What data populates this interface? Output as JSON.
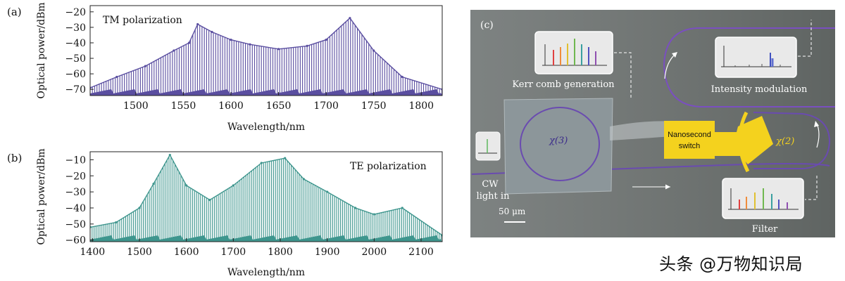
{
  "figure": {
    "panel_a": {
      "tag": "(a)"
    },
    "panel_b": {
      "tag": "(b)"
    },
    "panel_c": {
      "tag": "(c)",
      "labels": {
        "kerr": "Kerr comb generation",
        "intensity": "Intensity modulation",
        "filter": "Filter",
        "cw_line1": "CW",
        "cw_line2": "light in",
        "scale": "50 μm",
        "ns_line1": "Nanosecond",
        "ns_line2": "switch",
        "chi3": "χ(3)",
        "chi2": "χ(2)"
      }
    }
  },
  "watermark": "头条 @万物知识局",
  "colors": {
    "tm_trace": "#5a4ea0",
    "te_trace": "#3f968e",
    "chip_bg": "#5f6462",
    "waveguide": "#6a4bb0",
    "switch": "#f4d21e"
  },
  "chart_data": [
    {
      "type": "line",
      "title": "",
      "annotation": "TM polarization",
      "xlabel": "Wavelength/nm",
      "ylabel": "Optical power/dBm",
      "xlim": [
        1452,
        1822
      ],
      "ylim": [
        -74,
        -16
      ],
      "xticks": [
        1500,
        1550,
        1600,
        1650,
        1700,
        1750,
        1800
      ],
      "yticks": [
        -20,
        -30,
        -40,
        -50,
        -60,
        -70
      ],
      "x": [
        1452,
        1480,
        1510,
        1540,
        1556,
        1565,
        1580,
        1600,
        1620,
        1650,
        1680,
        1700,
        1725,
        1750,
        1780,
        1822
      ],
      "series": [
        {
          "values": [
            -69,
            -62,
            -55,
            -45,
            -40,
            -28,
            -33,
            -38,
            -41,
            -44,
            -42,
            -38,
            -24,
            -45,
            -62,
            -70
          ]
        }
      ]
    },
    {
      "type": "line",
      "title": "",
      "annotation": "TE polarization",
      "xlabel": "Wavelength/nm",
      "ylabel": "Optical power/dBm",
      "xlim": [
        1395,
        2145
      ],
      "ylim": [
        -61,
        -5
      ],
      "xticks": [
        1400,
        1500,
        1600,
        1700,
        1800,
        1900,
        2000,
        2100
      ],
      "yticks": [
        -10,
        -20,
        -30,
        -40,
        -50,
        -60
      ],
      "x": [
        1395,
        1450,
        1500,
        1530,
        1565,
        1600,
        1650,
        1700,
        1760,
        1810,
        1850,
        1900,
        1960,
        2000,
        2060,
        2145
      ],
      "series": [
        {
          "values": [
            -52,
            -49,
            -40,
            -25,
            -7,
            -26,
            -35,
            -26,
            -12,
            -9,
            -22,
            -30,
            -40,
            -44,
            -40,
            -57
          ]
        }
      ]
    }
  ]
}
